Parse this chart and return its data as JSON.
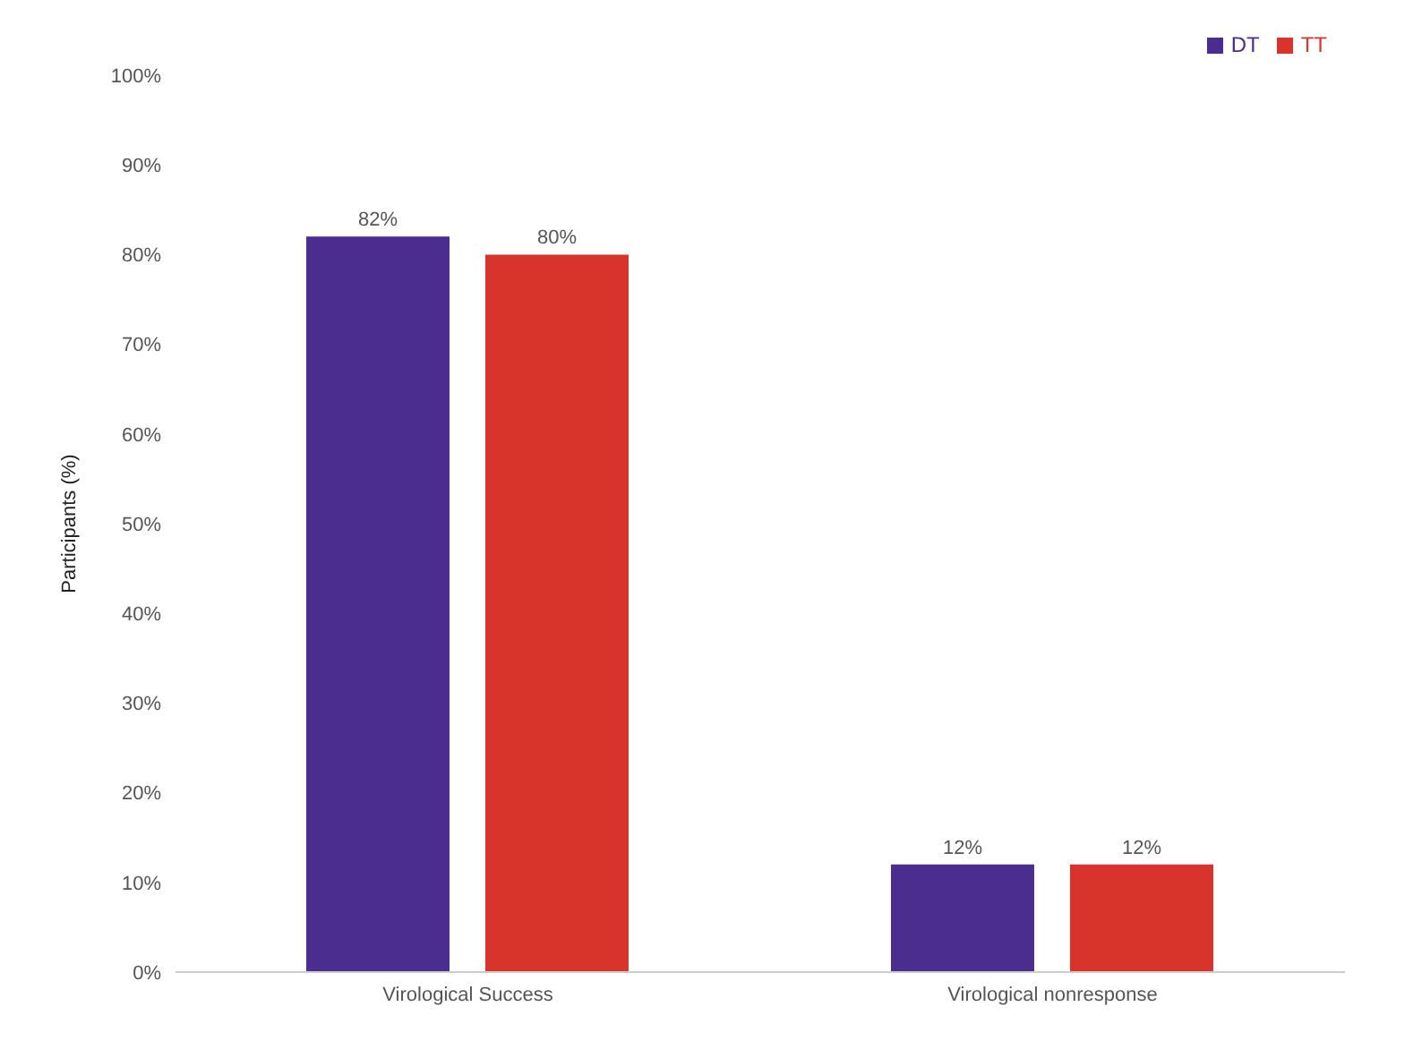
{
  "chart_data": {
    "type": "bar",
    "ylabel": "Participants (%)",
    "categories": [
      "Virological Success",
      "Virological nonresponse"
    ],
    "series": [
      {
        "name": "DT",
        "color": "#4b2d8f",
        "values": [
          82,
          12
        ],
        "value_labels": [
          "82%",
          "12%"
        ]
      },
      {
        "name": "TT",
        "color": "#d9342b",
        "values": [
          80,
          12
        ],
        "value_labels": [
          "80%",
          "12%"
        ]
      }
    ],
    "ylim": [
      0,
      100
    ],
    "yticks": [
      {
        "value": 0,
        "label": "0%"
      },
      {
        "value": 10,
        "label": "10%"
      },
      {
        "value": 20,
        "label": "20%"
      },
      {
        "value": 30,
        "label": "30%"
      },
      {
        "value": 40,
        "label": "40%"
      },
      {
        "value": 50,
        "label": "50%"
      },
      {
        "value": 60,
        "label": "60%"
      },
      {
        "value": 70,
        "label": "70%"
      },
      {
        "value": 80,
        "label": "80%"
      },
      {
        "value": 90,
        "label": "90%"
      },
      {
        "value": 100,
        "label": "100%"
      }
    ],
    "grid": false,
    "legend": "top right"
  }
}
